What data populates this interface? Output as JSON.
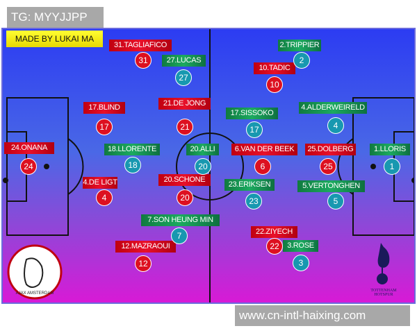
{
  "watermark_top": "TG: MYYJJPP",
  "watermark_bottom": "www.cn-intl-haixing.com",
  "credit": "MADE BY LUKAI MA",
  "ajax_crest_text": "AJAX AMSTERDAM",
  "spurs_crest_text": "TOTTENHAM HOTSPUR",
  "colors": {
    "ajax": "#dd1020",
    "spurs": "#1898b0",
    "pitch_top": "#2c3cf2",
    "pitch_bottom": "#d81ad6"
  },
  "ajax_players": [
    {
      "label": "31.TAGLIAFICO",
      "number": "31"
    },
    {
      "label": "17.BLIND",
      "number": "17"
    },
    {
      "label": "21.DE JONG",
      "number": "21"
    },
    {
      "label": "24.ONANA",
      "number": "24"
    },
    {
      "label": "4.DE LIGT",
      "number": "4"
    },
    {
      "label": "20.SCHONE",
      "number": "20"
    },
    {
      "label": "12.MAZRAOUI",
      "number": "12"
    },
    {
      "label": "6.VAN DER BEEK",
      "number": "6"
    },
    {
      "label": "10.TADIC",
      "number": "10"
    },
    {
      "label": "25.DOLBERG",
      "number": "25"
    },
    {
      "label": "22.ZIYECH",
      "number": "22"
    }
  ],
  "spurs_players": [
    {
      "label": "27.LUCAS",
      "number": "27"
    },
    {
      "label": "2.TRIPPIER",
      "number": "2"
    },
    {
      "label": "18.LLORENTE",
      "number": "18"
    },
    {
      "label": "20.ALLI",
      "number": "20"
    },
    {
      "label": "17.SISSOKO",
      "number": "17"
    },
    {
      "label": "4.ALDERWEIRELD",
      "number": "4"
    },
    {
      "label": "1.LLORIS",
      "number": "1"
    },
    {
      "label": "23.ERIKSEN",
      "number": "23"
    },
    {
      "label": "5.VERTONGHEN",
      "number": "5"
    },
    {
      "label": "7.SON HEUNG MIN",
      "number": "7"
    },
    {
      "label": "3.ROSE",
      "number": "3"
    }
  ]
}
